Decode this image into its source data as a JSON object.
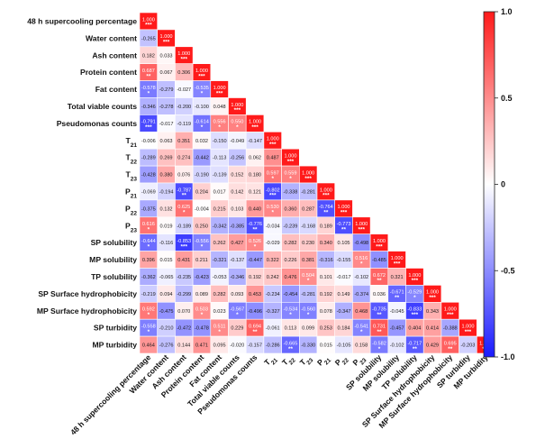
{
  "chart_data": {
    "type": "heatmap",
    "title": "",
    "variables": [
      "48 h supercooling percentage",
      "Water content",
      "Ash content",
      "Protein content",
      "Fat content",
      "Total viable counts",
      "Pseudomonas counts",
      "T21",
      "T22",
      "T23",
      "P21",
      "P22",
      "P23",
      "SP solubility",
      "MP solubility",
      "TP solubility",
      "SP Surface hydrophobicity",
      "MP Surface hydrophobicity",
      "SP turbidity",
      "MP turbidity"
    ],
    "row_labels": [
      {
        "base": "48 h supercooling percentage",
        "sub": ""
      },
      {
        "base": "Water content",
        "sub": ""
      },
      {
        "base": "Ash content",
        "sub": ""
      },
      {
        "base": "Protein content",
        "sub": ""
      },
      {
        "base": "Fat content",
        "sub": ""
      },
      {
        "base": "Total viable counts",
        "sub": ""
      },
      {
        "base": "Pseudomonas counts",
        "sub": ""
      },
      {
        "base": "T",
        "sub": "21"
      },
      {
        "base": "T",
        "sub": "22"
      },
      {
        "base": "T",
        "sub": "23"
      },
      {
        "base": "P",
        "sub": "21"
      },
      {
        "base": "P",
        "sub": "22"
      },
      {
        "base": "P",
        "sub": "23"
      },
      {
        "base": "SP solubility",
        "sub": ""
      },
      {
        "base": "MP solubility",
        "sub": ""
      },
      {
        "base": "TP solubility",
        "sub": ""
      },
      {
        "base": "SP Surface hydrophobicity",
        "sub": ""
      },
      {
        "base": "MP Surface hydrophobicity",
        "sub": ""
      },
      {
        "base": "SP turbidity",
        "sub": ""
      },
      {
        "base": "MP turbidity",
        "sub": ""
      }
    ],
    "col_labels": [
      {
        "base": "48 h supercooling percentage",
        "sub": ""
      },
      {
        "base": "Water content",
        "sub": ""
      },
      {
        "base": "Ash content",
        "sub": ""
      },
      {
        "base": "Protein content",
        "sub": ""
      },
      {
        "base": "Fat content",
        "sub": ""
      },
      {
        "base": "Total viable counts",
        "sub": ""
      },
      {
        "base": "Pseudomonas counts",
        "sub": ""
      },
      {
        "base": "T",
        "sub": "21"
      },
      {
        "base": "T",
        "sub": "22"
      },
      {
        "base": "T",
        "sub": "23"
      },
      {
        "base": "P",
        "sub": "21"
      },
      {
        "base": "P",
        "sub": "22"
      },
      {
        "base": "P",
        "sub": "23"
      },
      {
        "base": "SP solubility",
        "sub": ""
      },
      {
        "base": "MP solubility",
        "sub": ""
      },
      {
        "base": "TP solubility",
        "sub": ""
      },
      {
        "base": "SP Surface hydrophobicity",
        "sub": ""
      },
      {
        "base": "MP Surface hydrophobicity",
        "sub": ""
      },
      {
        "base": "SP turbidity",
        "sub": ""
      },
      {
        "base": "MP turbidity",
        "sub": ""
      }
    ],
    "matrix": [
      [
        "1.000"
      ],
      [
        "-0.265",
        "1.000"
      ],
      [
        "0.182",
        "0.033",
        "1.000"
      ],
      [
        "0.687",
        "0.067",
        "0.306",
        "1.000"
      ],
      [
        "-0.578",
        "-0.279",
        "-0.027",
        "-0.535",
        "1.000"
      ],
      [
        "-0.346",
        "-0.278",
        "-0.200",
        "-0.100",
        "0.048",
        "1.000"
      ],
      [
        "-0.791",
        "-0.017",
        "-0.119",
        "-0.614",
        "0.556",
        "0.550",
        "1.000"
      ],
      [
        "-0.006",
        "0.063",
        "0.351",
        "0.032",
        "-0.150",
        "-0.049",
        "-0.147",
        "1.000"
      ],
      [
        "-0.289",
        "0.269",
        "0.274",
        "-0.442",
        "-0.113",
        "-0.256",
        "0.062",
        "0.487",
        "1.000"
      ],
      [
        "-0.428",
        "0.380",
        "0.076",
        "-0.190",
        "-0.139",
        "0.152",
        "0.180",
        "0.597",
        "0.559",
        "1.000"
      ],
      [
        "-0.069",
        "-0.194",
        "-0.787",
        "0.204",
        "0.017",
        "0.142",
        "0.121",
        "-0.802",
        "-0.338",
        "-0.281",
        "1.000"
      ],
      [
        "-0.375",
        "0.132",
        "0.625",
        "-0.004",
        "0.215",
        "0.103",
        "0.440",
        "0.530",
        "0.360",
        "0.287",
        "-0.764",
        "1.000"
      ],
      [
        "0.616",
        "0.019",
        "-0.189",
        "0.250",
        "-0.342",
        "-0.385",
        "-0.776",
        "-0.034",
        "-0.239",
        "-0.168",
        "0.189",
        "-0.773",
        "1.000"
      ],
      [
        "-0.644",
        "-0.116",
        "-0.853",
        "-0.556",
        "0.262",
        "0.427",
        "0.526",
        "-0.029",
        "0.282",
        "0.230",
        "0.340",
        "0.105",
        "-0.498",
        "1.000"
      ],
      [
        "0.396",
        "0.015",
        "0.431",
        "0.211",
        "-0.321",
        "-0.137",
        "-0.447",
        "0.322",
        "0.226",
        "0.381",
        "-0.316",
        "-0.155",
        "0.516",
        "-0.485",
        "1.000"
      ],
      [
        "-0.362",
        "-0.065",
        "-0.235",
        "-0.423",
        "-0.053",
        "-0.346",
        "0.192",
        "0.242",
        "0.476",
        "0.504",
        "0.101",
        "-0.017",
        "-0.102",
        "0.672",
        "0.321",
        "1.000"
      ],
      [
        "-0.219",
        "0.094",
        "-0.299",
        "0.089",
        "0.282",
        "0.093",
        "0.453",
        "-0.234",
        "-0.454",
        "-0.281",
        "0.192",
        "0.149",
        "-0.374",
        "0.036",
        "-0.671",
        "-0.529",
        "1.000"
      ],
      [
        "0.592",
        "-0.475",
        "0.070",
        "0.503",
        "0.023",
        "-0.567",
        "-0.496",
        "-0.327",
        "-0.534",
        "-0.560",
        "0.078",
        "-0.347",
        "0.468",
        "-0.735",
        "-0.045",
        "-0.833",
        "0.343",
        "1.000"
      ],
      [
        "-0.558",
        "-0.210",
        "-0.472",
        "-0.478",
        "0.511",
        "0.229",
        "0.694",
        "-0.061",
        "0.113",
        "0.099",
        "0.253",
        "0.184",
        "-0.541",
        "0.731",
        "-0.457",
        "0.404",
        "0.414",
        "-0.388",
        "1.000"
      ],
      [
        "0.464",
        "-0.276",
        "0.144",
        "0.471",
        "0.095",
        "-0.020",
        "-0.157",
        "-0.286",
        "-0.665",
        "-0.330",
        "0.015",
        "-0.105",
        "0.158",
        "-0.582",
        "-0.102",
        "-0.717",
        "0.429",
        "0.695",
        "-0.203",
        "1.000"
      ]
    ],
    "stars": [
      [
        "***"
      ],
      [
        "",
        "***"
      ],
      [
        "",
        "",
        "***"
      ],
      [
        "**",
        "",
        "",
        "***"
      ],
      [
        "*",
        "",
        "",
        "*",
        "***"
      ],
      [
        "",
        "",
        "",
        "",
        "",
        "***"
      ],
      [
        "***",
        "",
        "",
        "*",
        "*",
        "*",
        "***"
      ],
      [
        "",
        "",
        "",
        "",
        "",
        "",
        "",
        "***"
      ],
      [
        "",
        "",
        "",
        "",
        "",
        "",
        "",
        "",
        "***"
      ],
      [
        "",
        "",
        "",
        "",
        "",
        "",
        "",
        "*",
        "*",
        "***"
      ],
      [
        "",
        "",
        "**",
        "",
        "",
        "",
        "",
        "***",
        "",
        "",
        "***"
      ],
      [
        "",
        "",
        "*",
        "",
        "",
        "",
        "",
        "*",
        "",
        "",
        "**",
        "***"
      ],
      [
        "*",
        "",
        "",
        "",
        "",
        "",
        "**",
        "",
        "",
        "",
        "",
        "**",
        "***"
      ],
      [
        "*",
        "",
        "***",
        "*",
        "",
        "",
        "*",
        "",
        "",
        "",
        "",
        "",
        "",
        "***"
      ],
      [
        "",
        "",
        "",
        "",
        "",
        "",
        "",
        "",
        "",
        "",
        "",
        "",
        "*",
        "",
        "***"
      ],
      [
        "",
        "",
        "",
        "",
        "",
        "",
        "",
        "",
        "",
        "*",
        "",
        "",
        "",
        "**",
        "",
        "***"
      ],
      [
        "",
        "",
        "",
        "",
        "",
        "",
        "",
        "",
        "",
        "",
        "",
        "",
        "",
        "",
        "**",
        "*",
        "***"
      ],
      [
        "*",
        "",
        "",
        "*",
        "",
        "*",
        "",
        "",
        "*",
        "*",
        "",
        "",
        "",
        "**",
        "",
        "***",
        "",
        "***"
      ],
      [
        "*",
        "",
        "",
        "",
        "*",
        "",
        "**",
        "",
        "",
        "",
        "",
        "",
        "*",
        "**",
        "",
        "",
        "",
        "",
        "***"
      ],
      [
        "",
        "",
        "",
        "",
        "",
        "",
        "",
        "",
        "**",
        "",
        "",
        "",
        "",
        "*",
        "",
        "**",
        "",
        "**",
        "",
        "***"
      ]
    ],
    "colorscale": {
      "min": -1.0,
      "max": 1.0,
      "low": "#1a1aff",
      "mid": "#ffffff",
      "high": "#ff1a1a"
    },
    "colorbar_ticks": [
      "1.0",
      "0.5",
      "0",
      "-0.5",
      "-1.0"
    ],
    "colorbar_tick_values": [
      1.0,
      0.5,
      0.0,
      -0.5,
      -1.0
    ]
  }
}
